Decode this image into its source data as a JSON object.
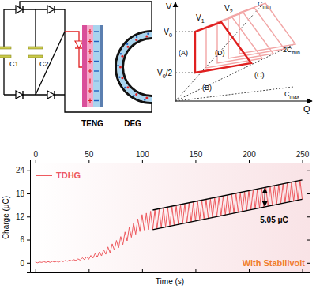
{
  "chart_data": {
    "type": "line",
    "x_label": "Time (s)",
    "y_label": "Charge (μC)",
    "x": [
      0,
      2,
      4,
      6,
      8,
      10,
      12,
      14,
      16,
      18,
      20,
      22,
      24,
      26,
      28,
      30,
      32,
      34,
      36,
      38,
      40,
      42,
      44,
      46,
      48,
      50,
      52,
      54,
      56,
      58,
      60,
      62,
      64,
      66,
      68,
      70,
      72,
      74,
      76,
      78,
      80,
      82,
      84,
      86,
      88,
      90,
      92,
      94,
      96,
      98,
      100,
      102,
      104,
      106,
      108,
      110,
      112,
      114,
      116,
      118,
      120,
      122,
      124,
      126,
      128,
      130,
      132,
      134,
      136,
      138,
      140,
      142,
      144,
      146,
      148,
      150,
      152,
      154,
      156,
      158,
      160,
      162,
      164,
      166,
      168,
      170,
      172,
      174,
      176,
      178,
      180,
      182,
      184,
      186,
      188,
      190,
      192,
      194,
      196,
      198,
      200,
      202,
      204,
      206,
      208,
      210,
      212,
      214,
      216,
      218,
      220,
      222,
      224,
      226,
      228,
      230,
      232,
      234,
      236,
      238,
      240,
      242,
      244,
      246,
      248,
      250
    ],
    "series": [
      {
        "name": "TDHG",
        "color": "#ee5a5f",
        "values": [
          0.2,
          0.0,
          0.2,
          0.1,
          0.3,
          0.1,
          0.3,
          0.1,
          0.4,
          0.2,
          0.4,
          0.2,
          0.5,
          0.3,
          0.6,
          0.4,
          0.7,
          0.5,
          0.8,
          0.6,
          1.0,
          0.7,
          1.3,
          0.8,
          1.6,
          0.9,
          1.9,
          1.2,
          2.4,
          1.5,
          2.8,
          1.8,
          3.4,
          2.2,
          4.1,
          2.6,
          4.9,
          3.3,
          5.8,
          3.9,
          6.8,
          4.7,
          8.0,
          5.7,
          9.2,
          6.6,
          10.3,
          7.4,
          11.4,
          8.1,
          12.5,
          8.5,
          12.9,
          8.6,
          13.4,
          8.6,
          13.7,
          8.8,
          13.9,
          9.1,
          14.2,
          9.3,
          14.4,
          9.5,
          14.6,
          9.7,
          14.8,
          10.0,
          15.1,
          10.2,
          15.3,
          10.4,
          15.5,
          10.6,
          15.7,
          10.9,
          16.0,
          11.1,
          16.2,
          11.3,
          16.4,
          11.5,
          16.6,
          11.8,
          16.9,
          12.0,
          17.1,
          12.2,
          17.3,
          12.4,
          17.5,
          12.7,
          17.8,
          12.9,
          18.0,
          13.1,
          18.2,
          13.3,
          18.4,
          13.6,
          18.7,
          13.8,
          18.9,
          14.0,
          19.1,
          14.2,
          19.4,
          14.5,
          19.6,
          14.7,
          19.8,
          14.9,
          20.0,
          15.1,
          20.3,
          15.4,
          20.5,
          15.6,
          20.7,
          15.8,
          20.9,
          16.0,
          21.2,
          16.3,
          21.4,
          16.5
        ]
      }
    ],
    "xlim": [
      -5,
      257
    ],
    "xticks": [
      0,
      50,
      100,
      150,
      200,
      250
    ],
    "ylim": [
      -2.5,
      26
    ],
    "yticks": [
      0,
      6,
      12,
      18,
      24
    ],
    "legend": "upper left",
    "annotations": [
      {
        "text": "5.05 μC",
        "x": [
          110,
          250
        ],
        "upper": [
          13.7,
          21.5
        ],
        "lower": [
          8.6,
          16.5
        ],
        "arrow_x": 215
      },
      {
        "text": "With Stabilivolt",
        "color": "#f07d2e"
      }
    ]
  },
  "circuit": {
    "capacitors": [
      "C1",
      "C2"
    ],
    "teng": "TENG",
    "deg": "DEG"
  },
  "vq_diagram": {
    "y_axis": "V",
    "x_axis": "Q",
    "levels": [
      {
        "base": "V",
        "sub": "0"
      },
      {
        "base": "V",
        "sub": "0",
        "tail": "/2"
      }
    ],
    "peaks": [
      {
        "base": "V",
        "sub": "1"
      },
      {
        "base": "V",
        "sub": "2"
      }
    ],
    "capacitance_lines": [
      {
        "base": "C",
        "sub": "min"
      },
      {
        "base": "2C",
        "sub": "min"
      },
      {
        "base": "C",
        "sub": "max"
      }
    ],
    "stages": [
      "(A)",
      "(B)",
      "(C)",
      "(D)"
    ]
  }
}
